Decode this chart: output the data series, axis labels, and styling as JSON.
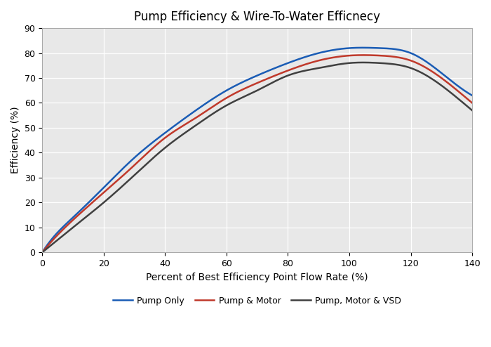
{
  "title": "Pump Efficiency & Wire-To-Water Efficnecy",
  "xlabel": "Percent of Best Efficiency Point Flow Rate (%)",
  "ylabel": "Efficiency (%)",
  "xlim": [
    0,
    140
  ],
  "ylim": [
    0,
    90
  ],
  "xticks": [
    0,
    20,
    40,
    60,
    80,
    100,
    120,
    140
  ],
  "yticks": [
    0,
    10,
    20,
    30,
    40,
    50,
    60,
    70,
    80,
    90
  ],
  "background_color": "#e8e8e8",
  "grid_color": "#ffffff",
  "lines": [
    {
      "label": "Pump Only",
      "color": "#1a5cb5",
      "linewidth": 1.8,
      "control_points": [
        [
          0,
          0
        ],
        [
          5,
          8
        ],
        [
          10,
          14
        ],
        [
          20,
          26
        ],
        [
          30,
          38
        ],
        [
          40,
          48
        ],
        [
          50,
          57
        ],
        [
          60,
          65
        ],
        [
          70,
          71
        ],
        [
          80,
          76
        ],
        [
          90,
          80
        ],
        [
          100,
          82
        ],
        [
          110,
          82
        ],
        [
          120,
          80
        ],
        [
          130,
          72
        ],
        [
          140,
          63
        ]
      ]
    },
    {
      "label": "Pump & Motor",
      "color": "#c0392b",
      "linewidth": 1.8,
      "control_points": [
        [
          0,
          0
        ],
        [
          5,
          7
        ],
        [
          10,
          13
        ],
        [
          20,
          24
        ],
        [
          30,
          35
        ],
        [
          40,
          46
        ],
        [
          50,
          54
        ],
        [
          60,
          62
        ],
        [
          70,
          68
        ],
        [
          80,
          73
        ],
        [
          90,
          77
        ],
        [
          100,
          79
        ],
        [
          110,
          79
        ],
        [
          120,
          77
        ],
        [
          130,
          70
        ],
        [
          140,
          60
        ]
      ]
    },
    {
      "label": "Pump, Motor & VSD",
      "color": "#404040",
      "linewidth": 1.8,
      "control_points": [
        [
          0,
          0
        ],
        [
          5,
          5
        ],
        [
          10,
          10
        ],
        [
          20,
          20
        ],
        [
          30,
          31
        ],
        [
          40,
          42
        ],
        [
          50,
          51
        ],
        [
          60,
          59
        ],
        [
          70,
          65
        ],
        [
          80,
          71
        ],
        [
          90,
          74
        ],
        [
          100,
          76
        ],
        [
          110,
          76
        ],
        [
          120,
          74
        ],
        [
          130,
          67
        ],
        [
          140,
          57
        ]
      ]
    }
  ],
  "legend_ncol": 3,
  "title_fontsize": 12,
  "label_fontsize": 10,
  "tick_fontsize": 9,
  "legend_fontsize": 9
}
